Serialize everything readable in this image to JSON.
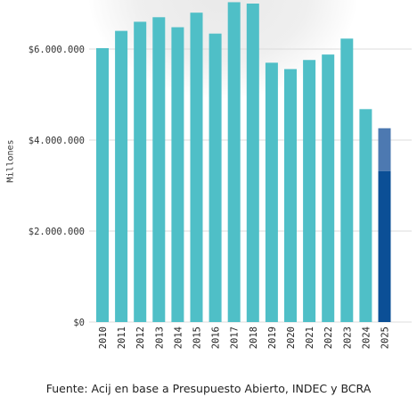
{
  "chart_data": {
    "type": "bar",
    "categories": [
      "2010",
      "2011",
      "2012",
      "2013",
      "2014",
      "2015",
      "2016",
      "2017",
      "2018",
      "2019",
      "2020",
      "2021",
      "2022",
      "2023",
      "2024",
      "2025"
    ],
    "values": [
      6020000,
      6400000,
      6600000,
      6700000,
      6480000,
      6800000,
      6340000,
      7030000,
      7000000,
      5700000,
      5560000,
      5760000,
      5880000,
      6230000,
      4680000,
      4260000
    ],
    "stacked_2025": {
      "dark": 3320000,
      "light": 940000
    },
    "yticks": [
      0,
      2000000,
      4000000,
      6000000
    ],
    "ytick_labels": [
      "$0",
      "$2.000.000",
      "$4.000.000",
      "$6.000.000"
    ],
    "ylim": [
      0,
      7100000
    ],
    "ylabel": "Millones",
    "colors": {
      "bar": "#4fbfc7",
      "dark": "#0b4f96",
      "light": "#4d79b1",
      "grid": "#dcdcdc"
    }
  },
  "source": "Fuente: Acij en base a Presupuesto Abierto, INDEC y BCRA"
}
